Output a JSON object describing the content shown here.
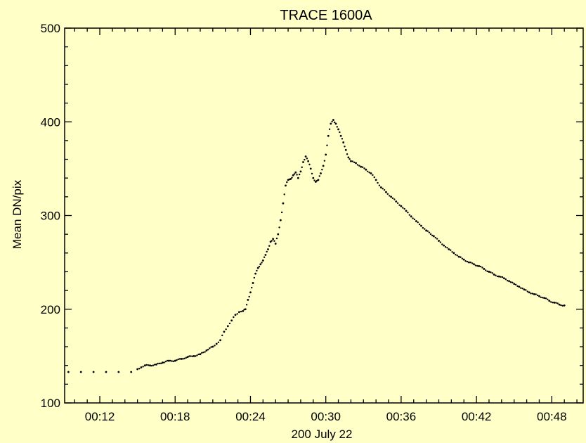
{
  "chart_data": {
    "type": "scatter",
    "title": "TRACE 1600A",
    "xlabel": "200 July 22",
    "ylabel": "Mean DN/pix",
    "x_unit": "minutes after 00:00",
    "xlim": [
      9.2,
      50.5
    ],
    "ylim": [
      100,
      500
    ],
    "x_ticks": [
      "00:12",
      "00:18",
      "00:24",
      "00:30",
      "00:36",
      "00:42",
      "00:48"
    ],
    "y_ticks": [
      "100",
      "200",
      "300",
      "400",
      "500"
    ],
    "grid": false,
    "series": [
      {
        "color": "#000000",
        "points": [
          [
            9.5,
            133
          ],
          [
            10.5,
            133
          ],
          [
            11.5,
            133
          ],
          [
            12.5,
            133
          ],
          [
            13.5,
            133
          ],
          [
            14.5,
            133
          ],
          [
            15.0,
            136
          ],
          [
            15.3,
            138
          ],
          [
            15.6,
            140
          ],
          [
            16.0,
            140
          ],
          [
            16.5,
            141
          ],
          [
            17.0,
            143
          ],
          [
            17.5,
            145
          ],
          [
            18.0,
            145
          ],
          [
            18.5,
            147
          ],
          [
            19.0,
            149
          ],
          [
            19.5,
            150
          ],
          [
            20.0,
            152
          ],
          [
            20.5,
            156
          ],
          [
            21.0,
            160
          ],
          [
            21.3,
            163
          ],
          [
            21.6,
            167
          ],
          [
            21.9,
            176
          ],
          [
            22.2,
            182
          ],
          [
            22.5,
            188
          ],
          [
            22.8,
            194
          ],
          [
            23.1,
            197
          ],
          [
            23.4,
            198
          ],
          [
            23.6,
            200
          ],
          [
            23.8,
            210
          ],
          [
            24.0,
            218
          ],
          [
            24.2,
            228
          ],
          [
            24.4,
            238
          ],
          [
            24.6,
            244
          ],
          [
            24.8,
            248
          ],
          [
            25.0,
            252
          ],
          [
            25.2,
            258
          ],
          [
            25.4,
            264
          ],
          [
            25.6,
            272
          ],
          [
            25.8,
            275
          ],
          [
            26.0,
            270
          ],
          [
            26.2,
            280
          ],
          [
            26.4,
            295
          ],
          [
            26.6,
            313
          ],
          [
            26.8,
            332
          ],
          [
            27.0,
            338
          ],
          [
            27.2,
            339
          ],
          [
            27.4,
            343
          ],
          [
            27.6,
            346
          ],
          [
            27.8,
            340
          ],
          [
            28.0,
            347
          ],
          [
            28.2,
            357
          ],
          [
            28.4,
            363
          ],
          [
            28.6,
            358
          ],
          [
            28.8,
            350
          ],
          [
            29.0,
            340
          ],
          [
            29.2,
            336
          ],
          [
            29.4,
            338
          ],
          [
            29.6,
            345
          ],
          [
            29.8,
            353
          ],
          [
            30.0,
            365
          ],
          [
            30.2,
            385
          ],
          [
            30.4,
            398
          ],
          [
            30.6,
            402
          ],
          [
            30.8,
            398
          ],
          [
            31.0,
            392
          ],
          [
            31.2,
            385
          ],
          [
            31.4,
            378
          ],
          [
            31.6,
            370
          ],
          [
            31.8,
            362
          ],
          [
            32.0,
            358
          ],
          [
            32.4,
            356
          ],
          [
            32.8,
            352
          ],
          [
            33.2,
            349
          ],
          [
            33.6,
            345
          ],
          [
            34.0,
            338
          ],
          [
            34.4,
            330
          ],
          [
            34.8,
            325
          ],
          [
            35.2,
            320
          ],
          [
            35.6,
            315
          ],
          [
            36.0,
            310
          ],
          [
            36.4,
            305
          ],
          [
            36.8,
            299
          ],
          [
            37.2,
            294
          ],
          [
            37.6,
            289
          ],
          [
            38.0,
            284
          ],
          [
            38.6,
            278
          ],
          [
            39.0,
            273
          ],
          [
            39.4,
            268
          ],
          [
            39.8,
            264
          ],
          [
            40.2,
            260
          ],
          [
            40.6,
            256
          ],
          [
            41.0,
            253
          ],
          [
            41.4,
            250
          ],
          [
            41.8,
            248
          ],
          [
            42.2,
            246
          ],
          [
            42.6,
            243
          ],
          [
            43.0,
            240
          ],
          [
            43.4,
            237
          ],
          [
            43.8,
            235
          ],
          [
            44.2,
            233
          ],
          [
            44.6,
            230
          ],
          [
            45.0,
            227
          ],
          [
            45.4,
            224
          ],
          [
            45.8,
            221
          ],
          [
            46.2,
            218
          ],
          [
            46.6,
            216
          ],
          [
            47.0,
            214
          ],
          [
            47.4,
            212
          ],
          [
            47.8,
            209
          ],
          [
            48.2,
            207
          ],
          [
            48.6,
            205
          ],
          [
            49.0,
            204
          ]
        ]
      }
    ]
  }
}
